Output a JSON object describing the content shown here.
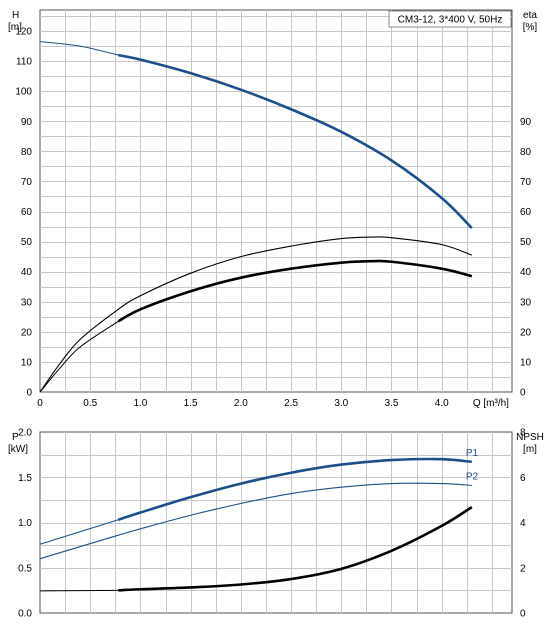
{
  "chart_data": [
    {
      "type": "line",
      "title": "CM3-12, 3*400 V, 50Hz",
      "xlabel": "Q [m³/h]",
      "xlim": [
        0,
        4.7
      ],
      "x_ticks": [
        "0",
        "0.5",
        "1.0",
        "1.5",
        "2.0",
        "2.5",
        "3.0",
        "3.5",
        "4.0"
      ],
      "x_tick_values": [
        0,
        0.5,
        1.0,
        1.5,
        2.0,
        2.5,
        3.0,
        3.5,
        4.0
      ],
      "left_axis": {
        "label_top": "H",
        "label_unit": "[m]",
        "ylim": [
          0,
          127
        ],
        "ticks": [
          0,
          10,
          20,
          30,
          40,
          50,
          60,
          70,
          80,
          90,
          100,
          110,
          120
        ]
      },
      "right_axis": {
        "label_top": "eta",
        "label_unit": "[%]",
        "ylim": [
          0,
          127
        ],
        "ticks": [
          0,
          10,
          20,
          30,
          40,
          50,
          60,
          70,
          80,
          90
        ]
      },
      "grid": true,
      "series": [
        {
          "axis": "left",
          "color": "#1b4f8a",
          "bold_from_x": 0.78,
          "x": [
            0,
            0.4,
            0.78,
            1.0,
            1.5,
            2.0,
            2.5,
            3.0,
            3.5,
            4.0,
            4.3
          ],
          "values": [
            116.5,
            115,
            112,
            110.5,
            106,
            100.5,
            94,
            86.5,
            77,
            64.5,
            54.5
          ]
        },
        {
          "axis": "right",
          "color": "#000000",
          "bold_from_x": 0.78,
          "x": [
            0,
            0.2,
            0.4,
            0.78,
            1.0,
            1.5,
            2.0,
            2.5,
            3.0,
            3.3,
            3.5,
            4.0,
            4.3
          ],
          "values": [
            0,
            8,
            15,
            23.5,
            27.5,
            33.5,
            38,
            41,
            43,
            43.5,
            43.3,
            41,
            38.5
          ]
        },
        {
          "axis": "right",
          "color": "#000000",
          "bold_from_x": null,
          "x": [
            0,
            0.2,
            0.4,
            0.78,
            1.0,
            1.5,
            2.0,
            2.5,
            3.0,
            3.3,
            3.5,
            4.0,
            4.3
          ],
          "values": [
            0,
            9.5,
            17.5,
            27.5,
            32,
            39.5,
            45,
            48.5,
            51,
            51.5,
            51.3,
            49,
            45.5
          ]
        }
      ]
    },
    {
      "type": "line",
      "xlim": [
        0,
        4.7
      ],
      "left_axis": {
        "label_top": "P",
        "label_unit": "[kW]",
        "ylim": [
          0,
          2.0
        ],
        "ticks": [
          "0.0",
          "0.5",
          "1.0",
          "1.5",
          "2.0"
        ],
        "tick_values": [
          0,
          0.5,
          1.0,
          1.5,
          2.0
        ]
      },
      "right_axis": {
        "label_top": "NPSH",
        "label_unit": "[m]",
        "ylim": [
          0,
          8
        ],
        "ticks": [
          "0",
          "2",
          "4",
          "6",
          "8"
        ],
        "tick_values": [
          0,
          2,
          4,
          6,
          8
        ]
      },
      "grid": true,
      "series": [
        {
          "name": "P1",
          "axis": "left",
          "color": "#1b4f8a",
          "bold_from_x": 0.78,
          "x": [
            0,
            0.78,
            1.0,
            1.5,
            2.0,
            2.5,
            3.0,
            3.5,
            4.0,
            4.3
          ],
          "values": [
            0.76,
            1.03,
            1.11,
            1.28,
            1.43,
            1.55,
            1.64,
            1.69,
            1.7,
            1.67
          ]
        },
        {
          "name": "P2",
          "axis": "left",
          "color": "#1b4f8a",
          "bold_from_x": null,
          "x": [
            0,
            0.78,
            1.0,
            1.5,
            2.0,
            2.5,
            3.0,
            3.5,
            4.0,
            4.3
          ],
          "values": [
            0.6,
            0.86,
            0.93,
            1.08,
            1.21,
            1.32,
            1.39,
            1.43,
            1.43,
            1.41
          ]
        },
        {
          "axis": "right",
          "color": "#000000",
          "bold_from_x": 0.78,
          "x": [
            0,
            0.78,
            1.0,
            1.5,
            2.0,
            2.5,
            3.0,
            3.5,
            4.0,
            4.3
          ],
          "values": [
            0.98,
            1.0,
            1.05,
            1.13,
            1.26,
            1.5,
            1.95,
            2.75,
            3.85,
            4.68
          ]
        }
      ]
    }
  ]
}
